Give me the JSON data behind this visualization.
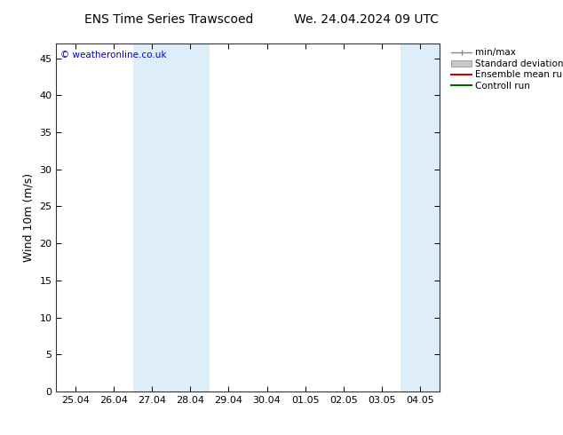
{
  "title_left": "ENS Time Series Trawscoed",
  "title_right": "We. 24.04.2024 09 UTC",
  "ylabel": "Wind 10m (m/s)",
  "watermark": "© weatheronline.co.uk",
  "watermark_color": "#0000cc",
  "ylim": [
    0,
    47
  ],
  "yticks": [
    0,
    5,
    10,
    15,
    20,
    25,
    30,
    35,
    40,
    45
  ],
  "xtick_labels": [
    "25.04",
    "26.04",
    "27.04",
    "28.04",
    "29.04",
    "30.04",
    "01.05",
    "02.05",
    "03.05",
    "04.05"
  ],
  "background_color": "#ffffff",
  "plot_background_color": "#ffffff",
  "shaded_bands": [
    {
      "xstart": 1.5,
      "xend": 3.5,
      "color": "#ddeef8"
    },
    {
      "xstart": 8.5,
      "xend": 9.5,
      "color": "#ddeef8"
    }
  ],
  "title_fontsize": 10,
  "axis_fontsize": 9,
  "tick_fontsize": 8,
  "font_family": "DejaVu Sans"
}
